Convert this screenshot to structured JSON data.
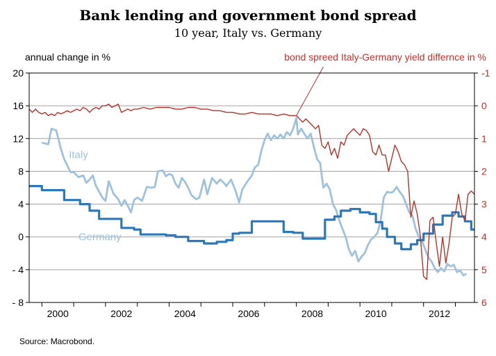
{
  "header": {
    "title": "Bank lending and government bond spread",
    "subtitle": "10 year, Italy vs. Germany"
  },
  "axes": {
    "left_label": "annual change in %",
    "right_label": "bond spreed Italy-Germany yield differnce in %"
  },
  "footer": {
    "source": "Source: Macrobond."
  },
  "colors": {
    "italy": "#9ec1de",
    "germany": "#2c78b8",
    "spread": "#b63228",
    "axis_right": "#c0302a",
    "grid": "#a0a0a0"
  },
  "chart_data": {
    "type": "line",
    "title": "Bank lending and government bond spread",
    "subtitle": "10 year, Italy vs. Germany",
    "xlabel": "",
    "ylabel": "annual change in %",
    "y2label": "bond spreed Italy-Germany yield differnce in %",
    "xlim": [
      1999.6,
      2013.6
    ],
    "ylim": [
      -8,
      20
    ],
    "y2lim": [
      6,
      -1
    ],
    "y2_inverted": true,
    "x_ticks": [
      "2000",
      "2002",
      "2004",
      "2006",
      "2008",
      "2010",
      "2012"
    ],
    "y_ticks": [
      "20",
      "16",
      "12",
      "8",
      "4",
      "0",
      "- 4",
      "- 8"
    ],
    "y2_ticks": [
      "-1",
      "0",
      "1",
      "2",
      "3",
      "4",
      "5",
      "6"
    ],
    "grid": true,
    "legend": "none",
    "series": [
      {
        "name": "Italy",
        "axis": "left",
        "label_position": [
          2000.8,
          9.5
        ],
        "points": [
          [
            2000.0,
            11.5
          ],
          [
            2000.2,
            11.3
          ],
          [
            2000.3,
            13.2
          ],
          [
            2000.45,
            13.0
          ],
          [
            2000.6,
            10.7
          ],
          [
            2000.7,
            9.5
          ],
          [
            2000.9,
            7.9
          ],
          [
            2001.0,
            7.9
          ],
          [
            2001.15,
            7.3
          ],
          [
            2001.3,
            7.5
          ],
          [
            2001.4,
            6.6
          ],
          [
            2001.5,
            7.0
          ],
          [
            2001.6,
            7.5
          ],
          [
            2001.7,
            6.2
          ],
          [
            2001.9,
            4.8
          ],
          [
            2002.0,
            4.4
          ],
          [
            2002.1,
            6.8
          ],
          [
            2002.25,
            5.3
          ],
          [
            2002.4,
            4.6
          ],
          [
            2002.5,
            3.8
          ],
          [
            2002.6,
            4.5
          ],
          [
            2002.7,
            3.8
          ],
          [
            2002.8,
            3.0
          ],
          [
            2002.9,
            4.5
          ],
          [
            2003.0,
            4.8
          ],
          [
            2003.15,
            4.4
          ],
          [
            2003.3,
            6.1
          ],
          [
            2003.45,
            6.0
          ],
          [
            2003.55,
            6.1
          ],
          [
            2003.65,
            8.0
          ],
          [
            2003.8,
            8.1
          ],
          [
            2003.9,
            7.4
          ],
          [
            2004.0,
            7.7
          ],
          [
            2004.1,
            7.5
          ],
          [
            2004.2,
            6.5
          ],
          [
            2004.3,
            6.0
          ],
          [
            2004.4,
            7.2
          ],
          [
            2004.5,
            6.7
          ],
          [
            2004.6,
            6.0
          ],
          [
            2004.7,
            5.1
          ],
          [
            2004.85,
            4.6
          ],
          [
            2004.95,
            4.8
          ],
          [
            2005.1,
            7.0
          ],
          [
            2005.2,
            5.2
          ],
          [
            2005.35,
            7.2
          ],
          [
            2005.5,
            6.5
          ],
          [
            2005.6,
            7.0
          ],
          [
            2005.7,
            6.7
          ],
          [
            2005.8,
            6.2
          ],
          [
            2005.95,
            7.0
          ],
          [
            2006.1,
            5.5
          ],
          [
            2006.2,
            4.2
          ],
          [
            2006.3,
            5.8
          ],
          [
            2006.45,
            6.7
          ],
          [
            2006.6,
            7.5
          ],
          [
            2006.7,
            8.5
          ],
          [
            2006.8,
            8.8
          ],
          [
            2006.9,
            10.5
          ],
          [
            2007.0,
            11.8
          ],
          [
            2007.1,
            12.6
          ],
          [
            2007.2,
            11.8
          ],
          [
            2007.3,
            12.4
          ],
          [
            2007.4,
            12.0
          ],
          [
            2007.5,
            12.5
          ],
          [
            2007.6,
            12.0
          ],
          [
            2007.7,
            12.8
          ],
          [
            2007.8,
            12.4
          ],
          [
            2007.9,
            13.2
          ],
          [
            2008.0,
            14.5
          ],
          [
            2008.05,
            12.5
          ],
          [
            2008.15,
            13.2
          ],
          [
            2008.25,
            12.6
          ],
          [
            2008.35,
            12.0
          ],
          [
            2008.45,
            12.6
          ],
          [
            2008.55,
            11.0
          ],
          [
            2008.65,
            9.5
          ],
          [
            2008.75,
            9.0
          ],
          [
            2008.85,
            6.0
          ],
          [
            2008.95,
            6.5
          ],
          [
            2009.05,
            5.8
          ],
          [
            2009.15,
            4.0
          ],
          [
            2009.25,
            3.3
          ],
          [
            2009.35,
            2.0
          ],
          [
            2009.45,
            1.0
          ],
          [
            2009.55,
            0.0
          ],
          [
            2009.65,
            -1.5
          ],
          [
            2009.75,
            -2.3
          ],
          [
            2009.85,
            -1.7
          ],
          [
            2009.95,
            -3.0
          ],
          [
            2010.05,
            -2.4
          ],
          [
            2010.15,
            -2.0
          ],
          [
            2010.25,
            -1.0
          ],
          [
            2010.35,
            -0.3
          ],
          [
            2010.45,
            0.0
          ],
          [
            2010.55,
            0.5
          ],
          [
            2010.65,
            2.0
          ],
          [
            2010.75,
            4.8
          ],
          [
            2010.85,
            5.5
          ],
          [
            2010.95,
            5.4
          ],
          [
            2011.05,
            5.5
          ],
          [
            2011.15,
            6.1
          ],
          [
            2011.25,
            5.5
          ],
          [
            2011.35,
            5.0
          ],
          [
            2011.45,
            4.0
          ],
          [
            2011.55,
            3.0
          ],
          [
            2011.65,
            2.6
          ],
          [
            2011.75,
            1.0
          ],
          [
            2011.85,
            0.0
          ],
          [
            2011.95,
            -0.5
          ],
          [
            2012.05,
            -1.5
          ],
          [
            2012.15,
            -2.5
          ],
          [
            2012.25,
            -3.0
          ],
          [
            2012.35,
            -3.8
          ],
          [
            2012.45,
            -4.3
          ],
          [
            2012.55,
            -3.8
          ],
          [
            2012.65,
            -4.2
          ],
          [
            2012.75,
            -3.3
          ],
          [
            2012.85,
            -3.6
          ],
          [
            2012.95,
            -3.4
          ],
          [
            2013.05,
            -4.3
          ],
          [
            2013.15,
            -4.1
          ],
          [
            2013.25,
            -4.7
          ],
          [
            2013.35,
            -4.5
          ]
        ]
      },
      {
        "name": "Germany",
        "axis": "left",
        "label_position": [
          2001.0,
          -0.3
        ],
        "step": true,
        "points": [
          [
            1999.6,
            6.2
          ],
          [
            1999.8,
            6.2
          ],
          [
            2000.0,
            5.7
          ],
          [
            2000.7,
            4.5
          ],
          [
            2001.0,
            4.5
          ],
          [
            2001.2,
            4.0
          ],
          [
            2001.5,
            3.2
          ],
          [
            2001.8,
            2.2
          ],
          [
            2002.5,
            1.1
          ],
          [
            2002.9,
            0.9
          ],
          [
            2003.1,
            0.3
          ],
          [
            2003.9,
            0.2
          ],
          [
            2004.2,
            0.0
          ],
          [
            2004.6,
            -0.5
          ],
          [
            2005.1,
            -0.8
          ],
          [
            2005.5,
            -0.6
          ],
          [
            2005.8,
            -0.4
          ],
          [
            2006.0,
            0.4
          ],
          [
            2006.2,
            0.5
          ],
          [
            2006.6,
            1.9
          ],
          [
            2007.6,
            0.6
          ],
          [
            2007.9,
            0.5
          ],
          [
            2008.2,
            -0.2
          ],
          [
            2008.9,
            2.1
          ],
          [
            2009.2,
            2.5
          ],
          [
            2009.4,
            3.2
          ],
          [
            2009.7,
            3.4
          ],
          [
            2010.0,
            3.0
          ],
          [
            2010.3,
            2.8
          ],
          [
            2010.5,
            1.8
          ],
          [
            2010.7,
            1.0
          ],
          [
            2010.85,
            0.0
          ],
          [
            2011.1,
            -0.8
          ],
          [
            2011.3,
            -1.5
          ],
          [
            2011.6,
            -0.9
          ],
          [
            2011.8,
            -0.4
          ],
          [
            2012.0,
            0.4
          ],
          [
            2012.3,
            1.5
          ],
          [
            2012.6,
            2.6
          ],
          [
            2012.9,
            3.0
          ],
          [
            2013.1,
            2.5
          ],
          [
            2013.3,
            1.9
          ],
          [
            2013.5,
            0.9
          ],
          [
            2013.9,
            1.4
          ],
          [
            2014.0,
            0.2
          ],
          [
            2014.2,
            0.2
          ]
        ]
      },
      {
        "name": "bond spread",
        "axis": "right",
        "points": [
          [
            1999.6,
            0.1
          ],
          [
            1999.7,
            0.2
          ],
          [
            1999.8,
            0.1
          ],
          [
            1999.9,
            0.2
          ],
          [
            2000.0,
            0.25
          ],
          [
            2000.1,
            0.2
          ],
          [
            2000.2,
            0.3
          ],
          [
            2000.3,
            0.25
          ],
          [
            2000.4,
            0.3
          ],
          [
            2000.5,
            0.2
          ],
          [
            2000.6,
            0.25
          ],
          [
            2000.7,
            0.2
          ],
          [
            2000.8,
            0.15
          ],
          [
            2000.9,
            0.2
          ],
          [
            2001.0,
            0.15
          ],
          [
            2001.1,
            0.1
          ],
          [
            2001.2,
            0.15
          ],
          [
            2001.3,
            0.05
          ],
          [
            2001.4,
            0.1
          ],
          [
            2001.5,
            0.2
          ],
          [
            2001.6,
            0.1
          ],
          [
            2001.7,
            0.05
          ],
          [
            2001.8,
            0.1
          ],
          [
            2001.9,
            0.0
          ],
          [
            2002.0,
            0.0
          ],
          [
            2002.1,
            -0.05
          ],
          [
            2002.2,
            0.05
          ],
          [
            2002.3,
            0.0
          ],
          [
            2002.4,
            -0.05
          ],
          [
            2002.5,
            0.2
          ],
          [
            2002.6,
            0.15
          ],
          [
            2002.7,
            0.1
          ],
          [
            2002.8,
            0.15
          ],
          [
            2002.9,
            0.1
          ],
          [
            2003.0,
            0.1
          ],
          [
            2003.2,
            0.05
          ],
          [
            2003.4,
            0.1
          ],
          [
            2003.6,
            0.05
          ],
          [
            2003.8,
            0.05
          ],
          [
            2004.0,
            0.05
          ],
          [
            2004.2,
            0.1
          ],
          [
            2004.4,
            0.1
          ],
          [
            2004.6,
            0.05
          ],
          [
            2004.8,
            0.05
          ],
          [
            2005.0,
            0.1
          ],
          [
            2005.2,
            0.1
          ],
          [
            2005.4,
            0.15
          ],
          [
            2005.6,
            0.15
          ],
          [
            2005.8,
            0.2
          ],
          [
            2006.0,
            0.2
          ],
          [
            2006.2,
            0.25
          ],
          [
            2006.4,
            0.25
          ],
          [
            2006.6,
            0.2
          ],
          [
            2006.8,
            0.25
          ],
          [
            2007.0,
            0.25
          ],
          [
            2007.2,
            0.25
          ],
          [
            2007.4,
            0.3
          ],
          [
            2007.6,
            0.25
          ],
          [
            2007.8,
            0.3
          ],
          [
            2008.0,
            0.3
          ],
          [
            2008.1,
            0.4
          ],
          [
            2008.2,
            0.5
          ],
          [
            2008.3,
            0.4
          ],
          [
            2008.4,
            0.5
          ],
          [
            2008.5,
            0.6
          ],
          [
            2008.6,
            0.7
          ],
          [
            2008.7,
            0.6
          ],
          [
            2008.8,
            1.2
          ],
          [
            2008.9,
            1.3
          ],
          [
            2009.0,
            1.1
          ],
          [
            2009.1,
            1.5
          ],
          [
            2009.2,
            1.3
          ],
          [
            2009.3,
            1.6
          ],
          [
            2009.4,
            1.1
          ],
          [
            2009.5,
            1.2
          ],
          [
            2009.6,
            0.9
          ],
          [
            2009.7,
            0.8
          ],
          [
            2009.8,
            0.7
          ],
          [
            2009.9,
            0.8
          ],
          [
            2010.0,
            0.9
          ],
          [
            2010.1,
            0.7
          ],
          [
            2010.2,
            0.75
          ],
          [
            2010.3,
            0.9
          ],
          [
            2010.4,
            1.4
          ],
          [
            2010.5,
            1.5
          ],
          [
            2010.6,
            1.2
          ],
          [
            2010.7,
            1.5
          ],
          [
            2010.8,
            1.5
          ],
          [
            2010.9,
            2.0
          ],
          [
            2011.0,
            1.6
          ],
          [
            2011.1,
            1.2
          ],
          [
            2011.2,
            1.4
          ],
          [
            2011.3,
            1.7
          ],
          [
            2011.4,
            1.8
          ],
          [
            2011.5,
            2.0
          ],
          [
            2011.6,
            3.4
          ],
          [
            2011.7,
            2.9
          ],
          [
            2011.8,
            3.3
          ],
          [
            2011.9,
            4.0
          ],
          [
            2012.0,
            5.2
          ],
          [
            2012.1,
            5.3
          ],
          [
            2012.2,
            3.5
          ],
          [
            2012.3,
            3.4
          ],
          [
            2012.4,
            4.2
          ],
          [
            2012.5,
            4.9
          ],
          [
            2012.6,
            4.0
          ],
          [
            2012.7,
            4.8
          ],
          [
            2012.8,
            4.2
          ],
          [
            2012.9,
            3.4
          ],
          [
            2013.0,
            3.3
          ],
          [
            2013.1,
            2.7
          ],
          [
            2013.2,
            3.3
          ],
          [
            2013.3,
            3.5
          ],
          [
            2013.4,
            2.7
          ],
          [
            2013.5,
            2.6
          ],
          [
            2013.6,
            2.7
          ],
          [
            2013.7,
            2.5
          ],
          [
            2013.8,
            2.6
          ],
          [
            2013.9,
            2.3
          ],
          [
            2014.0,
            2.4
          ],
          [
            2014.1,
            2.2
          ],
          [
            2014.2,
            1.9
          ]
        ]
      }
    ],
    "series_labels": [
      "Italy",
      "Germany"
    ]
  }
}
